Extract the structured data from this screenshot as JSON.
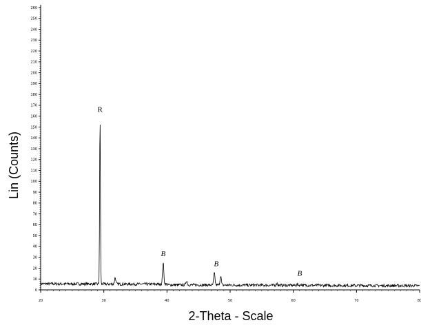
{
  "chart_data": {
    "type": "line",
    "xlabel": "2-Theta - Scale",
    "ylabel": "Lin (Counts)",
    "xlim": [
      20,
      80
    ],
    "ylim": [
      0,
      260
    ],
    "x_ticks": [
      20,
      30,
      40,
      50,
      60,
      70,
      80
    ],
    "y_ticks": [
      0,
      10,
      20,
      30,
      40,
      50,
      60,
      70,
      80,
      90,
      100,
      110,
      120,
      130,
      140,
      150,
      160,
      170,
      180,
      190,
      200,
      210,
      220,
      230,
      240,
      250,
      260
    ],
    "grid": false,
    "series": [
      {
        "color": "#000000",
        "baseline": 5,
        "peaks": [
          {
            "x": 29.4,
            "y": 159
          },
          {
            "x": 31.8,
            "y": 11
          },
          {
            "x": 39.4,
            "y": 25
          },
          {
            "x": 43.1,
            "y": 9
          },
          {
            "x": 47.5,
            "y": 16
          },
          {
            "x": 48.5,
            "y": 14
          },
          {
            "x": 57.4,
            "y": 7
          },
          {
            "x": 60.7,
            "y": 6
          },
          {
            "x": 61.3,
            "y": 6
          }
        ]
      }
    ],
    "annotations": [
      {
        "text": "R",
        "x": 29.4,
        "y": 164
      },
      {
        "text": "B",
        "x": 39.4,
        "y": 31
      },
      {
        "text": "B",
        "x": 47.8,
        "y": 22
      },
      {
        "text": "B",
        "x": 61.0,
        "y": 13
      }
    ]
  }
}
